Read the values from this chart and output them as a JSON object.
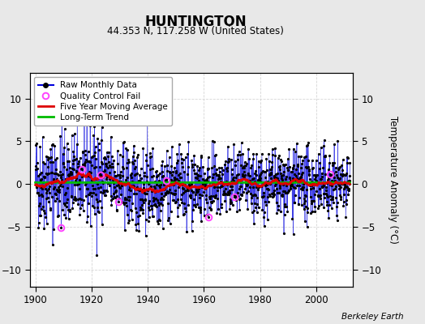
{
  "title": "HUNTINGTON",
  "subtitle": "44.353 N, 117.258 W (United States)",
  "ylabel": "Temperature Anomaly (°C)",
  "credit": "Berkeley Earth",
  "xlim": [
    1898,
    2013
  ],
  "ylim": [
    -12,
    13
  ],
  "yticks": [
    -10,
    -5,
    0,
    5,
    10
  ],
  "xticks": [
    1900,
    1920,
    1940,
    1960,
    1980,
    2000
  ],
  "seed": 42,
  "start_year": 1900,
  "end_year": 2012,
  "background_color": "#e8e8e8",
  "plot_bg_color": "#ffffff",
  "raw_line_color": "#0000dd",
  "raw_dot_color": "#000000",
  "moving_avg_color": "#dd0000",
  "trend_color": "#00bb00",
  "qc_fail_color": "#ff44ff",
  "legend_raw_label": "Raw Monthly Data",
  "legend_qc_label": "Quality Control Fail",
  "legend_ma_label": "Five Year Moving Average",
  "legend_trend_label": "Long-Term Trend"
}
